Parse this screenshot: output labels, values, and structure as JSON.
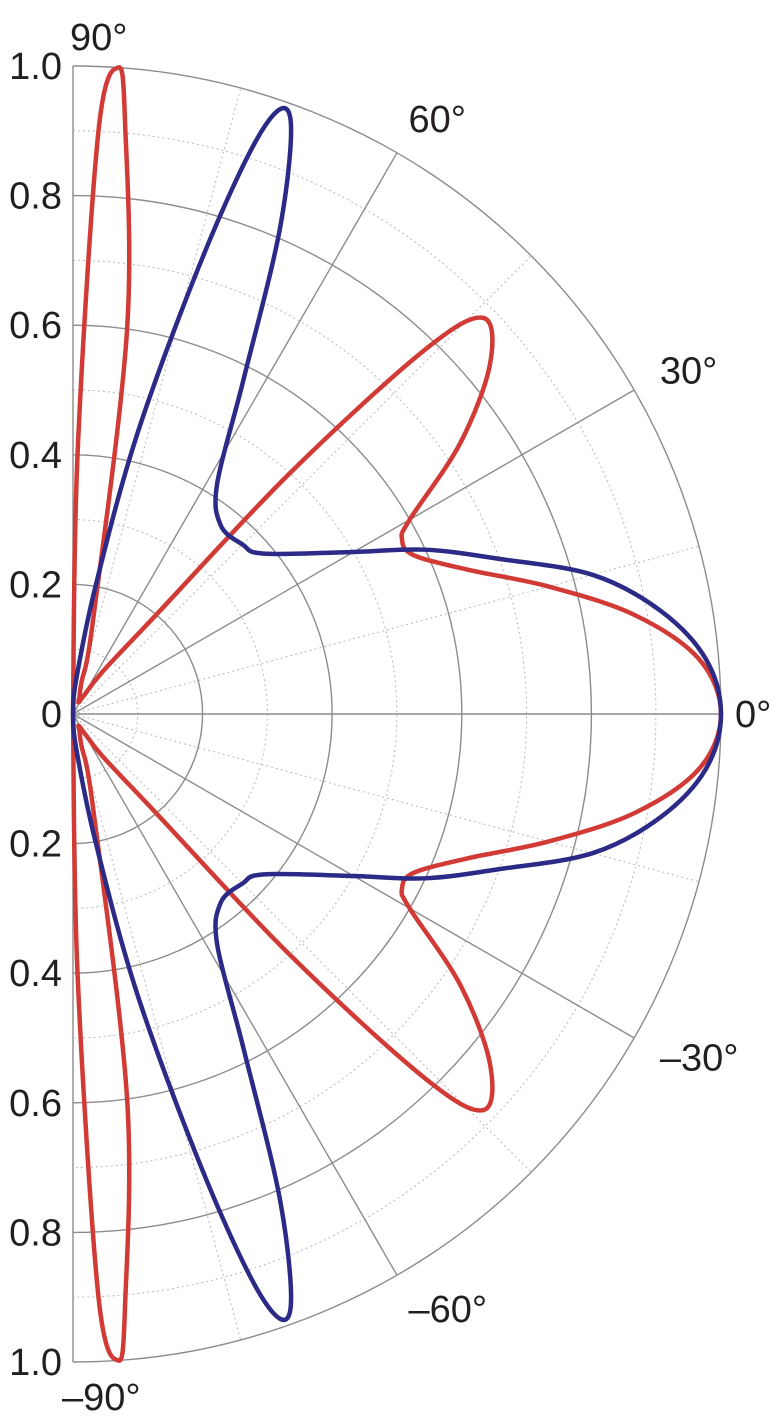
{
  "chart_data": {
    "type": "polar-line",
    "title": "",
    "angle_range_deg": [
      -90,
      90
    ],
    "radius_range": [
      0,
      1.0
    ],
    "radial_ticks": [
      {
        "value": 1.0,
        "label": "1.0",
        "side": "upper"
      },
      {
        "value": 0.8,
        "label": "0.8",
        "side": "upper"
      },
      {
        "value": 0.6,
        "label": "0.6",
        "side": "upper"
      },
      {
        "value": 0.4,
        "label": "0.4",
        "side": "upper"
      },
      {
        "value": 0.2,
        "label": "0.2",
        "side": "upper"
      },
      {
        "value": 0,
        "label": "0",
        "side": "center"
      },
      {
        "value": 0.2,
        "label": "0.2",
        "side": "lower"
      },
      {
        "value": 0.4,
        "label": "0.4",
        "side": "lower"
      },
      {
        "value": 0.6,
        "label": "0.6",
        "side": "lower"
      },
      {
        "value": 0.8,
        "label": "0.8",
        "side": "lower"
      },
      {
        "value": 1.0,
        "label": "1.0",
        "side": "lower"
      }
    ],
    "angle_ticks": [
      {
        "angle": 90,
        "label": "90°"
      },
      {
        "angle": 60,
        "label": "60°"
      },
      {
        "angle": 30,
        "label": "30°"
      },
      {
        "angle": 0,
        "label": "0°"
      },
      {
        "angle": -30,
        "label": "–30°"
      },
      {
        "angle": -60,
        "label": "–60°"
      },
      {
        "angle": -90,
        "label": "–90°"
      }
    ],
    "major_radial_grid": [
      0.2,
      0.4,
      0.6,
      0.8,
      1.0
    ],
    "minor_radial_grid": [
      0.1,
      0.3,
      0.5,
      0.7,
      0.9
    ],
    "major_angle_grid": [
      -90,
      -60,
      -30,
      0,
      30,
      60,
      90
    ],
    "minor_angle_grid": [
      -75,
      -45,
      -15,
      15,
      45,
      75
    ],
    "series": [
      {
        "color": "#d13a35",
        "points": [
          {
            "angle": 0,
            "r": 1.0
          },
          {
            "angle": 5,
            "r": 0.97
          },
          {
            "angle": 10,
            "r": 0.88
          },
          {
            "angle": 15,
            "r": 0.76
          },
          {
            "angle": 20,
            "r": 0.65
          },
          {
            "angle": 25,
            "r": 0.58
          },
          {
            "angle": 28,
            "r": 0.575
          },
          {
            "angle": 30,
            "r": 0.6
          },
          {
            "angle": 35,
            "r": 0.73
          },
          {
            "angle": 40,
            "r": 0.84
          },
          {
            "angle": 44,
            "r": 0.88
          },
          {
            "angle": 46,
            "r": 0.78
          },
          {
            "angle": 48,
            "r": 0.5
          },
          {
            "angle": 50,
            "r": 0.2
          },
          {
            "angle": 55,
            "r": 0.08
          },
          {
            "angle": 60,
            "r": 0.03
          },
          {
            "angle": 65,
            "r": 0.02
          },
          {
            "angle": 70,
            "r": 0.03
          },
          {
            "angle": 75,
            "r": 0.05
          },
          {
            "angle": 78,
            "r": 0.15
          },
          {
            "angle": 82,
            "r": 0.6
          },
          {
            "angle": 85,
            "r": 0.92
          },
          {
            "angle": 86,
            "r": 1.0
          },
          {
            "angle": 87.5,
            "r": 0.9
          },
          {
            "angle": 89,
            "r": 0.4
          },
          {
            "angle": 90,
            "r": 0.0
          }
        ]
      },
      {
        "color": "#2b2a86",
        "points": [
          {
            "angle": 0,
            "r": 1.0
          },
          {
            "angle": 5,
            "r": 0.98
          },
          {
            "angle": 10,
            "r": 0.92
          },
          {
            "angle": 15,
            "r": 0.83
          },
          {
            "angle": 20,
            "r": 0.7
          },
          {
            "angle": 25,
            "r": 0.6
          },
          {
            "angle": 30,
            "r": 0.5
          },
          {
            "angle": 40,
            "r": 0.385
          },
          {
            "angle": 45,
            "r": 0.37
          },
          {
            "angle": 52,
            "r": 0.37
          },
          {
            "angle": 58,
            "r": 0.42
          },
          {
            "angle": 63,
            "r": 0.58
          },
          {
            "angle": 67,
            "r": 0.82
          },
          {
            "angle": 70,
            "r": 0.98
          },
          {
            "angle": 72,
            "r": 0.95
          },
          {
            "angle": 74,
            "r": 0.75
          },
          {
            "angle": 77,
            "r": 0.45
          },
          {
            "angle": 80,
            "r": 0.2
          },
          {
            "angle": 85,
            "r": 0.05
          },
          {
            "angle": 90,
            "r": 0.0
          }
        ]
      }
    ]
  }
}
